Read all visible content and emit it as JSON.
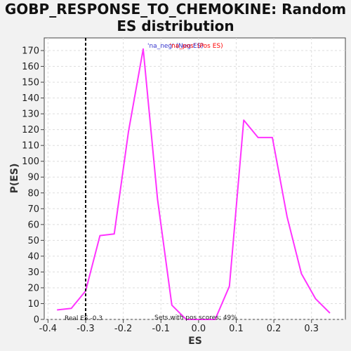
{
  "chart_data": {
    "type": "line",
    "title_line1": "GOBP_RESPONSE_TO_CHEMOKINE: Random",
    "title_line2": "ES distribution",
    "xlabel": "ES",
    "ylabel": "P(ES)",
    "xlim": [
      -0.41,
      0.39
    ],
    "ylim": [
      0,
      178
    ],
    "x_ticks": [
      -0.4,
      -0.3,
      -0.2,
      -0.1,
      0.0,
      0.1,
      0.2,
      0.3
    ],
    "x_tick_labels": [
      "-0.4",
      "-0.3",
      "-0.2",
      "-0.1",
      "0.0",
      "0.1",
      "0.2",
      "0.3"
    ],
    "y_ticks": [
      0,
      10,
      20,
      30,
      40,
      50,
      60,
      70,
      80,
      90,
      100,
      110,
      120,
      130,
      140,
      150,
      160,
      170
    ],
    "grid": true,
    "series": [
      {
        "color": "#ff33ff",
        "x": [
          -0.376,
          -0.338,
          -0.3,
          -0.262,
          -0.224,
          -0.186,
          -0.147,
          -0.109,
          -0.071,
          -0.033,
          0.005,
          0.044,
          0.082,
          0.12,
          0.158,
          0.196,
          0.235,
          0.273,
          0.311,
          0.349
        ],
        "y": [
          6,
          7,
          18,
          53,
          54,
          119,
          171,
          76,
          9,
          0,
          0,
          0,
          21,
          126,
          115,
          115,
          65,
          29,
          13,
          4
        ]
      }
    ],
    "real_es": {
      "value": -0.3,
      "label": "Real ES -0.3",
      "line_color": "#000000"
    },
    "pos_scores_label": "Sets with pos scores: 49%",
    "legend": {
      "position": "top-center",
      "part1": "'na_neg' (Neg ES)",
      "part1_color": "#3333cc",
      "part2": "'na_pos' (Pos ES)",
      "part2_color": "#ff0000"
    }
  }
}
